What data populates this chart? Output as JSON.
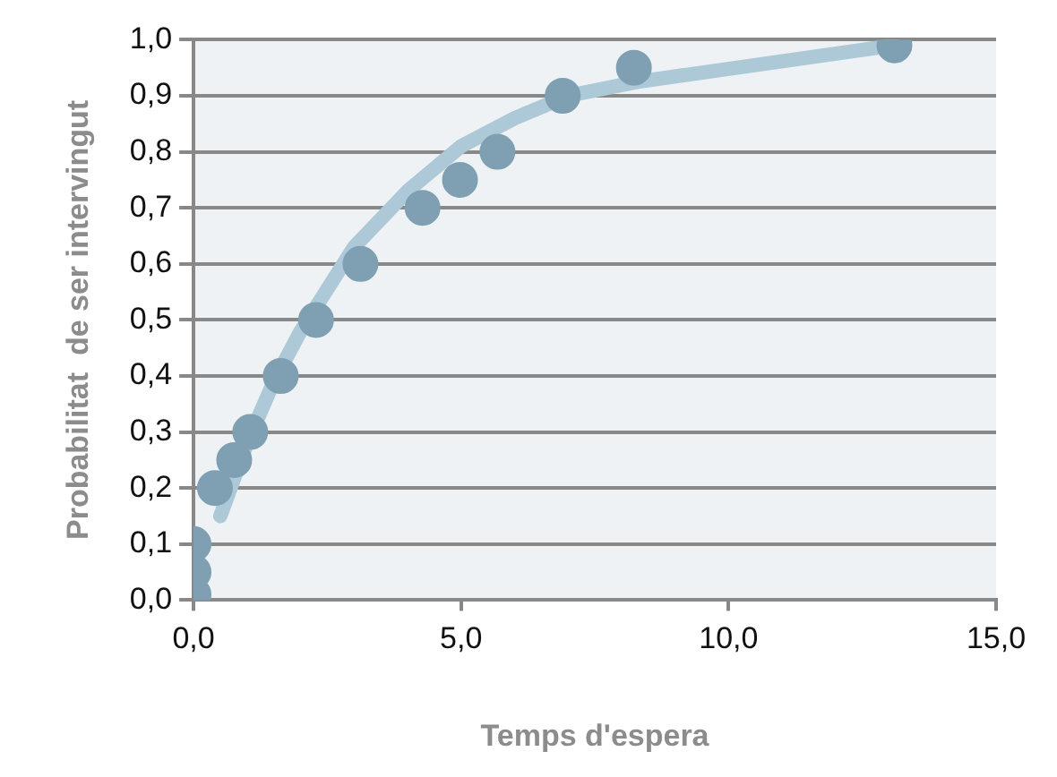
{
  "chart_data": {
    "type": "scatter",
    "xlabel": "Temps d'espera",
    "ylabel": "Probabilitat  de ser intervingut",
    "xlim": [
      0,
      15
    ],
    "xticks": [
      {
        "value": 0,
        "label": "0,0"
      },
      {
        "value": 5,
        "label": "5,0"
      },
      {
        "value": 10,
        "label": "10,0"
      },
      {
        "value": 15,
        "label": "15,0"
      }
    ],
    "ylim": [
      0,
      1
    ],
    "yticks": [
      {
        "value": 0,
        "label": "0,0"
      },
      {
        "value": 0.1,
        "label": "0,1"
      },
      {
        "value": 0.2,
        "label": "0,2"
      },
      {
        "value": 0.3,
        "label": "0,3"
      },
      {
        "value": 0.4,
        "label": "0,4"
      },
      {
        "value": 0.5,
        "label": "0,5"
      },
      {
        "value": 0.6,
        "label": "0,6"
      },
      {
        "value": 0.7,
        "label": "0,7"
      },
      {
        "value": 0.8,
        "label": "0,8"
      },
      {
        "value": 0.9,
        "label": "0,9"
      },
      {
        "value": 1,
        "label": "1,0"
      }
    ],
    "grid": "y",
    "legend": false,
    "series": [
      {
        "type": "line",
        "marker": "none",
        "color": "#adc8d6",
        "x": [
          0.5,
          1,
          1.5,
          2,
          3,
          4,
          5,
          6,
          7,
          8.3,
          13.1
        ],
        "values": [
          0.15,
          0.28,
          0.39,
          0.48,
          0.63,
          0.73,
          0.81,
          0.86,
          0.9,
          0.925,
          0.99
        ]
      },
      {
        "type": "scatter",
        "marker": "circle",
        "color": "#7f9fb2",
        "x": [
          0,
          0,
          0,
          0.4,
          0.76,
          1.06,
          1.63,
          2.29,
          3.12,
          4.28,
          4.98,
          5.68,
          6.9,
          8.23,
          13.1
        ],
        "values": [
          0.01,
          0.05,
          0.1,
          0.2,
          0.25,
          0.3,
          0.4,
          0.5,
          0.6,
          0.7,
          0.75,
          0.8,
          0.9,
          0.95,
          0.99
        ]
      }
    ]
  }
}
